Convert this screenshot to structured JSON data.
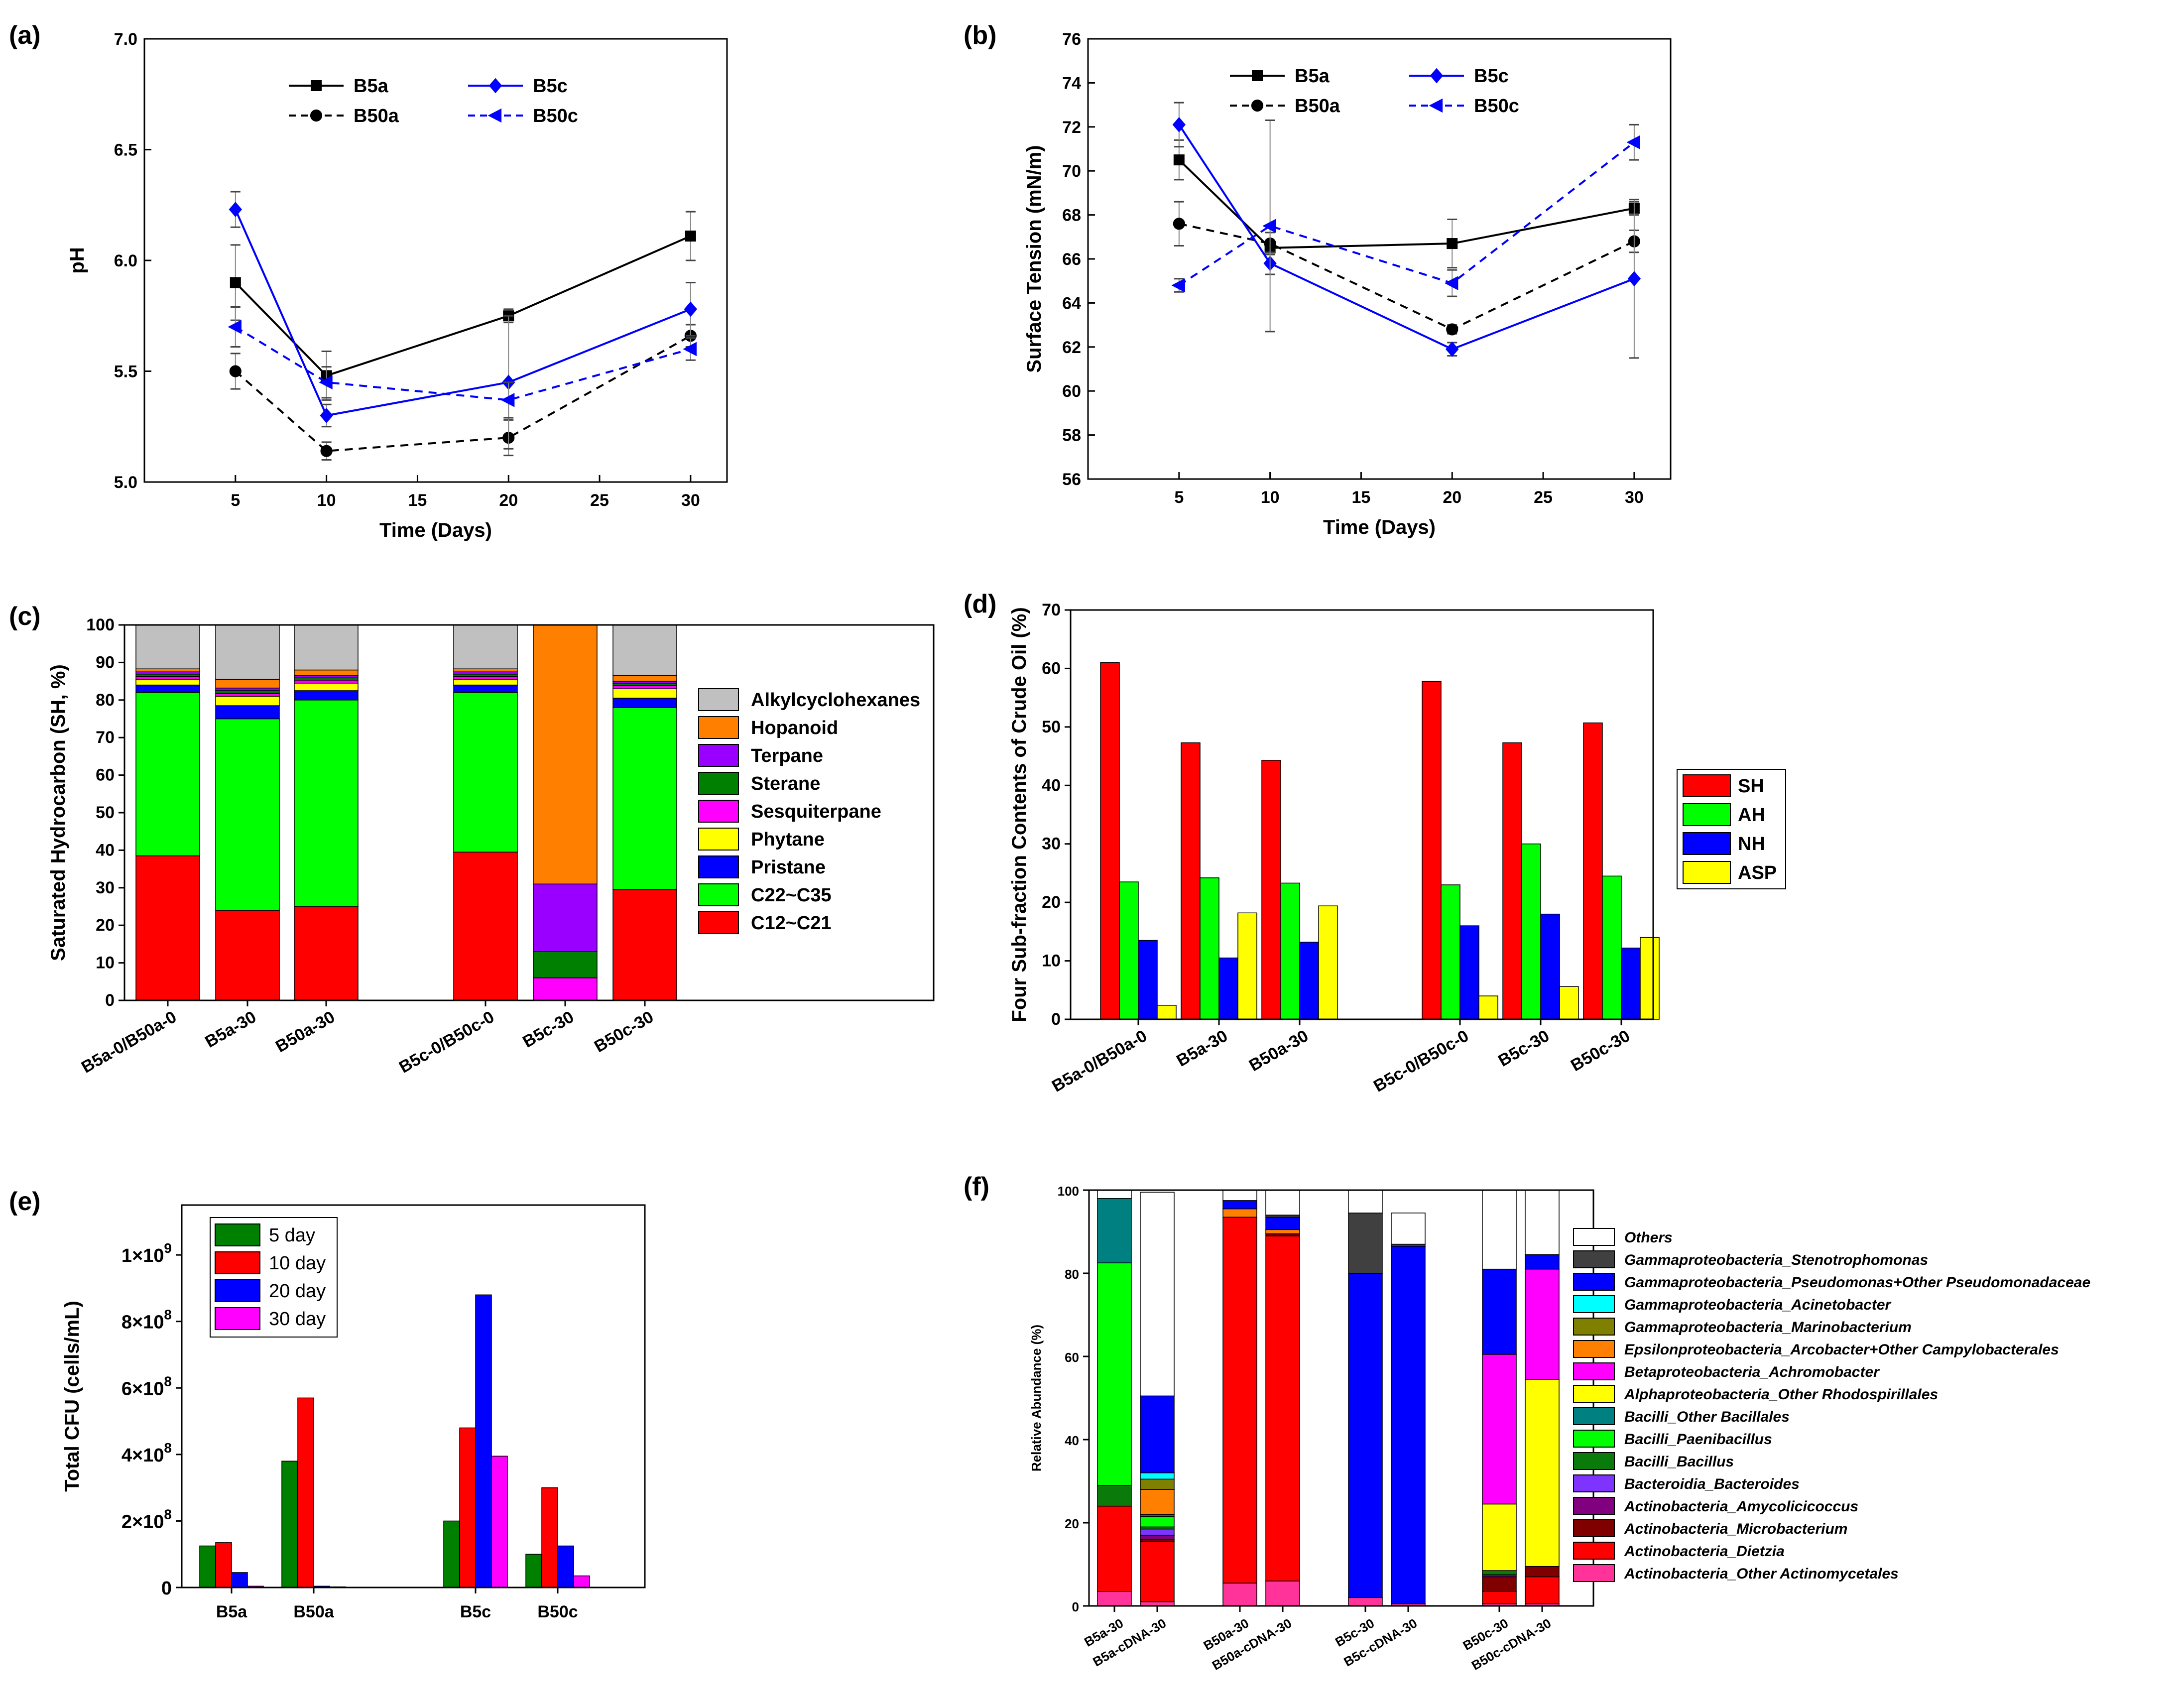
{
  "chart_data": [
    {
      "id": "a",
      "panel_label": "(a)",
      "type": "line",
      "xlabel": "Time (Days)",
      "ylabel": "pH",
      "xlim": [
        0,
        32
      ],
      "ylim": [
        5.0,
        7.0
      ],
      "xticks": [
        "5",
        "10",
        "15",
        "20",
        "25",
        "30"
      ],
      "yticks": [
        "5.0",
        "5.5",
        "6.0",
        "6.5",
        "7.0"
      ],
      "x": [
        5,
        10,
        20,
        30
      ],
      "series": [
        {
          "name": "B5a",
          "color": "#000000",
          "dashed": false,
          "marker": "square",
          "values": [
            5.9,
            5.48,
            5.75,
            6.11
          ],
          "errors": [
            0.17,
            0.11,
            0.03,
            0.11
          ]
        },
        {
          "name": "B50a",
          "color": "#000000",
          "dashed": true,
          "marker": "circle",
          "values": [
            5.5,
            5.14,
            5.2,
            5.66
          ],
          "errors": [
            0.08,
            0.04,
            0.08,
            0.05
          ]
        },
        {
          "name": "B5c",
          "color": "#0000ff",
          "dashed": false,
          "marker": "diamond",
          "values": [
            6.23,
            5.3,
            5.45,
            5.78
          ],
          "errors": [
            0.08,
            0.05,
            0.3,
            0.12
          ]
        },
        {
          "name": "B50c",
          "color": "#0000ff",
          "dashed": true,
          "marker": "triangle-left",
          "values": [
            5.7,
            5.45,
            5.37,
            5.6
          ],
          "errors": [
            0.09,
            0.07,
            0.08,
            0.05
          ]
        }
      ]
    },
    {
      "id": "b",
      "panel_label": "(b)",
      "type": "line",
      "xlabel": "Time (Days)",
      "ylabel": "Surface Tension (mN/m)",
      "xlim": [
        0,
        32
      ],
      "ylim": [
        56,
        76
      ],
      "xticks": [
        "5",
        "10",
        "15",
        "20",
        "25",
        "30"
      ],
      "yticks": [
        "56",
        "58",
        "60",
        "62",
        "64",
        "66",
        "68",
        "70",
        "72",
        "74",
        "76"
      ],
      "x": [
        5,
        10,
        20,
        30
      ],
      "series": [
        {
          "name": "B5a",
          "color": "#000000",
          "dashed": false,
          "marker": "square",
          "values": [
            70.5,
            66.5,
            66.7,
            68.3
          ],
          "errors": [
            0.9,
            0.3,
            1.1,
            0.3
          ]
        },
        {
          "name": "B50a",
          "color": "#000000",
          "dashed": true,
          "marker": "circle",
          "values": [
            67.6,
            66.7,
            62.8,
            66.8
          ],
          "errors": [
            1.0,
            0.5,
            0.2,
            0.5
          ]
        },
        {
          "name": "B5c",
          "color": "#0000ff",
          "dashed": false,
          "marker": "diamond",
          "values": [
            72.1,
            65.8,
            61.9,
            65.1
          ],
          "errors": [
            1.0,
            0.5,
            0.3,
            3.6
          ]
        },
        {
          "name": "B50c",
          "color": "#0000ff",
          "dashed": true,
          "marker": "triangle-left",
          "values": [
            64.8,
            67.5,
            64.9,
            71.3
          ],
          "errors": [
            0.3,
            4.8,
            0.6,
            0.8
          ]
        }
      ]
    },
    {
      "id": "c",
      "panel_label": "(c)",
      "type": "bar",
      "stacked": true,
      "ylabel": "Saturated Hydrocarbon (SH, %)",
      "ylim": [
        0,
        100
      ],
      "yticks": [
        "0",
        "10",
        "20",
        "30",
        "40",
        "50",
        "60",
        "70",
        "80",
        "90",
        "100"
      ],
      "categories": [
        "B5a-0/B50a-0",
        "B5a-30",
        "B50a-30",
        "B5c-0/B50c-0",
        "B5c-30",
        "B50c-30"
      ],
      "series": [
        {
          "name": "C12~C21",
          "color": "#ff0000",
          "values": [
            38.5,
            24.0,
            25.0,
            39.5,
            0.0,
            29.5
          ]
        },
        {
          "name": "C22~C35",
          "color": "#00ff00",
          "values": [
            43.5,
            51.0,
            55.0,
            42.5,
            0.0,
            48.5
          ]
        },
        {
          "name": "Pristane",
          "color": "#0000ff",
          "values": [
            2.0,
            3.5,
            2.5,
            2.0,
            0.0,
            2.5
          ]
        },
        {
          "name": "Phytane",
          "color": "#ffff00",
          "values": [
            1.5,
            2.5,
            2.0,
            1.5,
            0.0,
            2.5
          ]
        },
        {
          "name": "Sesquiterpane",
          "color": "#ff00ff",
          "values": [
            0.8,
            0.8,
            0.8,
            0.8,
            6.0,
            0.8
          ]
        },
        {
          "name": "Sterane",
          "color": "#008000",
          "values": [
            0.6,
            0.7,
            0.6,
            0.6,
            7.0,
            0.6
          ]
        },
        {
          "name": "Terpane",
          "color": "#9900ff",
          "values": [
            0.6,
            0.7,
            0.6,
            0.6,
            18.0,
            0.6
          ]
        },
        {
          "name": "Hopanoid",
          "color": "#ff8000",
          "values": [
            0.8,
            2.3,
            1.5,
            0.8,
            69.0,
            1.5
          ]
        },
        {
          "name": "Alkylcyclohexanes",
          "color": "#c0c0c0",
          "values": [
            11.7,
            14.5,
            12.0,
            11.7,
            0.0,
            13.5
          ]
        }
      ],
      "legend_order": [
        "Alkylcyclohexanes",
        "Hopanoid",
        "Terpane",
        "Sterane",
        "Sesquiterpane",
        "Phytane",
        "Pristane",
        "C22~C35",
        "C12~C21"
      ]
    },
    {
      "id": "d",
      "panel_label": "(d)",
      "type": "bar",
      "ylabel": "Four Sub-fraction Contents of Crude Oil (%)",
      "ylim": [
        0,
        70
      ],
      "yticks": [
        "0",
        "10",
        "20",
        "30",
        "40",
        "50",
        "60",
        "70"
      ],
      "categories": [
        "B5a-0/B50a-0",
        "B5a-30",
        "B50a-30",
        "B5c-0/B50c-0",
        "B5c-30",
        "B50c-30"
      ],
      "series": [
        {
          "name": "SH",
          "color": "#ff0000",
          "values": [
            61.0,
            47.3,
            44.3,
            57.8,
            47.3,
            50.7
          ]
        },
        {
          "name": "AH",
          "color": "#00ff00",
          "values": [
            23.5,
            24.2,
            23.3,
            23.0,
            30.0,
            24.5
          ]
        },
        {
          "name": "NH",
          "color": "#0000ff",
          "values": [
            13.5,
            10.5,
            13.2,
            16.0,
            18.0,
            12.2
          ]
        },
        {
          "name": "ASP",
          "color": "#ffff00",
          "values": [
            2.4,
            18.2,
            19.4,
            4.0,
            5.6,
            14.0
          ]
        }
      ]
    },
    {
      "id": "e",
      "panel_label": "(e)",
      "type": "bar",
      "ylabel": "Total CFU (cells/mL)",
      "ylim": [
        0,
        1.15
      ],
      "ytick_values": [
        0,
        0.2,
        0.4,
        0.6,
        0.8,
        1.0
      ],
      "ytick_labels": [
        {
          "mantissa": "0",
          "exponent": ""
        },
        {
          "mantissa": "2×10",
          "exponent": "8"
        },
        {
          "mantissa": "4×10",
          "exponent": "8"
        },
        {
          "mantissa": "6×10",
          "exponent": "8"
        },
        {
          "mantissa": "8×10",
          "exponent": "8"
        },
        {
          "mantissa": "1×10",
          "exponent": "9"
        }
      ],
      "value_unit": "1e9 cells/mL",
      "categories": [
        "B5a",
        "B50a",
        "B5c",
        "B50c"
      ],
      "series": [
        {
          "name": "5 day",
          "color": "#008000",
          "values": [
            0.125,
            0.38,
            0.2,
            0.1
          ]
        },
        {
          "name": "10 day",
          "color": "#ff0000",
          "values": [
            0.135,
            0.57,
            0.48,
            0.3
          ]
        },
        {
          "name": "20 day",
          "color": "#0000ff",
          "values": [
            0.045,
            0.004,
            0.88,
            0.125
          ]
        },
        {
          "name": "30 day",
          "color": "#ff00ff",
          "values": [
            0.004,
            0.002,
            0.395,
            0.035
          ]
        }
      ]
    },
    {
      "id": "f",
      "panel_label": "(f)",
      "type": "bar",
      "stacked": true,
      "ylabel": "Relative Abundance (%)",
      "ylim": [
        0,
        100
      ],
      "yticks": [
        "0",
        "20",
        "40",
        "60",
        "80",
        "100"
      ],
      "categories": [
        "B5a-30",
        "B5a-cDNA-30",
        "B50a-30",
        "B50a-cDNA-30",
        "B5c-30",
        "B5c-cDNA-30",
        "B50c-30",
        "B50c-cDNA-30"
      ],
      "series": [
        {
          "name": "Actinobacteria_Other Actinomycetales",
          "color": "#ff3399",
          "values": [
            3.5,
            1.0,
            5.5,
            6.0,
            2.0,
            0.5,
            0.5,
            0.5
          ]
        },
        {
          "name": "Actinobacteria_Dietzia",
          "color": "#ff0000",
          "values": [
            20.5,
            14.5,
            88.0,
            83.0,
            0.0,
            0.0,
            3.0,
            6.5
          ]
        },
        {
          "name": "Actinobacteria_Microbacterium",
          "color": "#800000",
          "values": [
            0.0,
            0.5,
            0.0,
            0.5,
            0.0,
            0.0,
            3.5,
            2.5
          ]
        },
        {
          "name": "Actinobacteria_Amycolicicoccus",
          "color": "#800080",
          "values": [
            0.0,
            1.0,
            0.0,
            0.0,
            0.0,
            0.0,
            0.5,
            0.0
          ]
        },
        {
          "name": "Bacteroidia_Bacteroides",
          "color": "#7f33ff",
          "values": [
            0.0,
            1.5,
            0.0,
            0.0,
            0.0,
            0.0,
            0.0,
            0.0
          ]
        },
        {
          "name": "Bacilli_Bacillus",
          "color": "#0a7a0a",
          "values": [
            5.0,
            0.5,
            0.0,
            0.0,
            0.0,
            0.0,
            1.0,
            0.0
          ]
        },
        {
          "name": "Bacilli_Paenibacillus",
          "color": "#00ff00",
          "values": [
            53.5,
            2.5,
            0.0,
            0.0,
            0.0,
            0.0,
            0.0,
            0.0
          ]
        },
        {
          "name": "Bacilli_Other Bacillales",
          "color": "#008080",
          "values": [
            15.5,
            0.5,
            0.0,
            0.0,
            0.0,
            0.0,
            0.0,
            0.0
          ]
        },
        {
          "name": "Alphaproteobacteria_Other Rhodospirillales",
          "color": "#ffff00",
          "values": [
            0.0,
            0.0,
            0.0,
            0.0,
            0.0,
            0.0,
            16.0,
            45.0
          ]
        },
        {
          "name": "Betaproteobacteria_Achromobacter",
          "color": "#ff00ff",
          "values": [
            0.0,
            0.0,
            0.0,
            0.0,
            0.0,
            0.0,
            36.0,
            26.5
          ]
        },
        {
          "name": "Epsilonproteobacteria_Arcobacter+Other Campylobacterales",
          "color": "#ff8000",
          "values": [
            0.0,
            6.0,
            2.0,
            1.0,
            0.0,
            0.0,
            0.0,
            0.0
          ]
        },
        {
          "name": "Gammaproteobacteria_Marinobacterium",
          "color": "#808000",
          "values": [
            0.0,
            2.5,
            0.0,
            0.0,
            0.0,
            0.0,
            0.0,
            0.0
          ]
        },
        {
          "name": "Gammaproteobacteria_Acinetobacter",
          "color": "#00ffff",
          "values": [
            0.0,
            1.5,
            0.0,
            0.0,
            0.0,
            0.0,
            0.0,
            0.0
          ]
        },
        {
          "name": "Gammaproteobacteria_Pseudomonas+Other Pseudomonadaceae",
          "color": "#0000ff",
          "values": [
            0.0,
            18.5,
            2.0,
            3.0,
            78.0,
            86.0,
            20.5,
            3.5
          ]
        },
        {
          "name": "Gammaproteobacteria_Stenotrophomonas",
          "color": "#404040",
          "values": [
            0.0,
            0.0,
            0.0,
            0.5,
            14.5,
            0.5,
            0.0,
            0.0
          ]
        },
        {
          "name": "Others",
          "color": "#ffffff",
          "values": [
            2.0,
            49.0,
            2.5,
            6.0,
            5.5,
            7.5,
            19.0,
            15.5
          ]
        }
      ],
      "legend_order": [
        "Others",
        "Gammaproteobacteria_Stenotrophomonas",
        "Gammaproteobacteria_Pseudomonas+Other Pseudomonadaceae",
        "Gammaproteobacteria_Acinetobacter",
        "Gammaproteobacteria_Marinobacterium",
        "Epsilonproteobacteria_Arcobacter+Other Campylobacterales",
        "Betaproteobacteria_Achromobacter",
        "Alphaproteobacteria_Other Rhodospirillales",
        "Bacilli_Other Bacillales",
        "Bacilli_Paenibacillus",
        "Bacilli_Bacillus",
        "Bacteroidia_Bacteroides",
        "Actinobacteria_Amycolicicoccus",
        "Actinobacteria_Microbacterium",
        "Actinobacteria_Dietzia",
        "Actinobacteria_Other Actinomycetales"
      ]
    }
  ]
}
